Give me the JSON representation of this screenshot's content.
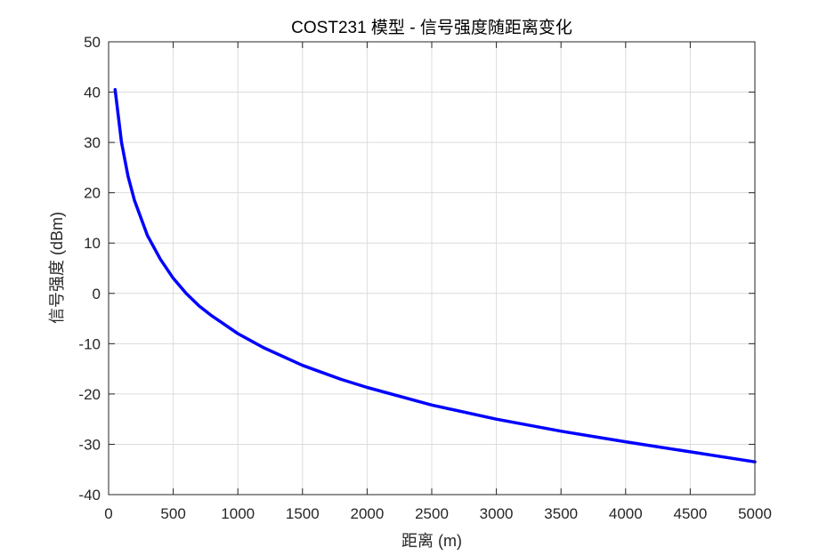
{
  "chart_data": {
    "type": "line",
    "title": "COST231 模型 - 信号强度随距离变化",
    "xlabel": "距离 (m)",
    "ylabel": "信号强度 (dBm)",
    "xlim": [
      0,
      5000
    ],
    "ylim": [
      -40,
      50
    ],
    "xticks": [
      0,
      500,
      1000,
      1500,
      2000,
      2500,
      3000,
      3500,
      4000,
      4500,
      5000
    ],
    "yticks": [
      -40,
      -30,
      -20,
      -10,
      0,
      10,
      20,
      30,
      40,
      50
    ],
    "grid": true,
    "colors": {
      "line": "#0000ff",
      "grid": "#dcdcdc",
      "axis": "#262626"
    },
    "series": [
      {
        "x": [
          50,
          100,
          150,
          200,
          300,
          400,
          500,
          600,
          700,
          800,
          1000,
          1200,
          1500,
          1800,
          2000,
          2500,
          3000,
          3500,
          4000,
          4500,
          5000
        ],
        "y": [
          40.5,
          30,
          23.3,
          18.5,
          11.5,
          6.8,
          3.0,
          0.0,
          -2.5,
          -4.5,
          -8.0,
          -10.8,
          -14.3,
          -17.1,
          -18.7,
          -22.2,
          -25.0,
          -27.4,
          -29.5,
          -31.5,
          -33.5
        ]
      }
    ]
  }
}
